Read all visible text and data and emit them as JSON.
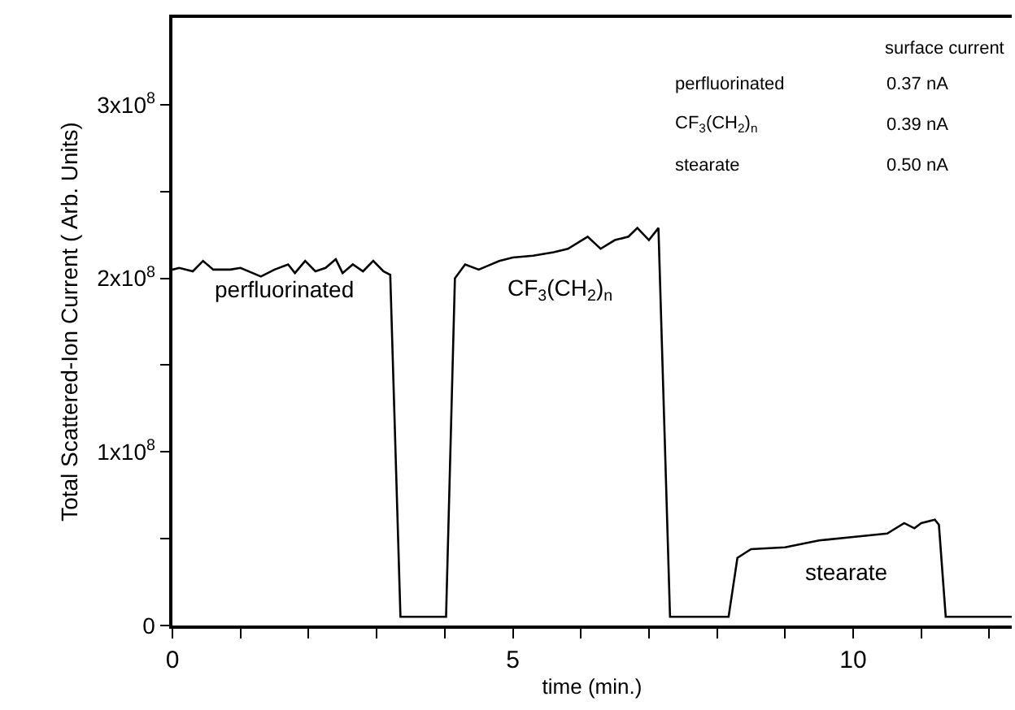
{
  "chart_data": {
    "type": "line",
    "xlabel": "time (min.)",
    "ylabel": "Total Scattered-Ion Current ( Arb. Units)",
    "x": [
      0,
      0.1,
      0.3,
      0.45,
      0.6,
      0.85,
      1.0,
      1.3,
      1.5,
      1.7,
      1.8,
      1.95,
      2.1,
      2.25,
      2.4,
      2.5,
      2.65,
      2.8,
      2.95,
      3.1,
      3.2,
      3.35,
      4.02,
      4.15,
      4.3,
      4.5,
      4.62,
      4.8,
      5.0,
      5.3,
      5.6,
      5.81,
      6.1,
      6.29,
      6.5,
      6.7,
      6.83,
      7.0,
      7.14,
      7.31,
      8.17,
      8.3,
      8.5,
      9.0,
      9.5,
      10.0,
      10.5,
      10.75,
      10.9,
      11.0,
      11.2,
      11.26,
      11.36,
      12.33
    ],
    "series": [
      {
        "color": "#000000",
        "values": [
          205000000.0,
          206000000.0,
          204000000.0,
          210000000.0,
          205000000.0,
          205000000.0,
          206000000.0,
          201000000.0,
          205000000.0,
          208000000.0,
          203000000.0,
          210000000.0,
          204000000.0,
          206000000.0,
          211000000.0,
          203000000.0,
          208000000.0,
          204000000.0,
          210000000.0,
          204000000.0,
          202000000.0,
          5000000.0,
          5000000.0,
          200000000.0,
          208000000.0,
          205000000.0,
          207000000.0,
          210000000.0,
          212000000.0,
          213000000.0,
          215000000.0,
          217000000.0,
          224000000.0,
          217000000.0,
          222000000.0,
          224000000.0,
          229000000.0,
          222000000.0,
          229000000.0,
          5000000.0,
          5000000.0,
          39000000.0,
          44000000.0,
          45000000.0,
          49000000.0,
          51000000.0,
          53000000.0,
          59000000.0,
          56000000.0,
          59000000.0,
          61000000.0,
          58000000.0,
          5000000.0,
          5000000.0
        ]
      }
    ],
    "xlim": [
      0,
      12.33
    ],
    "xticks": [
      0,
      {
        "value": 1,
        "label": null
      },
      {
        "value": 2,
        "label": null
      },
      {
        "value": 3,
        "label": null
      },
      {
        "value": 4,
        "label": null
      },
      5,
      {
        "value": 6,
        "label": null
      },
      {
        "value": 7,
        "label": null
      },
      {
        "value": 8,
        "label": null
      },
      {
        "value": 9,
        "label": null
      },
      10,
      {
        "value": 11,
        "label": null
      },
      {
        "value": 12,
        "label": null
      }
    ],
    "ylim": [
      0,
      350000000.0
    ],
    "yticks": [
      0,
      {
        "value": 50000000.0,
        "label": null
      },
      {
        "value": 100000000.0,
        "label": "1x10$^{8}$"
      },
      {
        "value": 150000000.0,
        "label": null
      },
      {
        "value": 200000000.0,
        "label": "2x10$^{8}$"
      },
      {
        "value": 250000000.0,
        "label": null
      },
      {
        "value": 300000000.0,
        "label": "3x10$^{8}$"
      }
    ],
    "marker": "none",
    "line_style": "solid",
    "annotations": [
      "perfluorinated",
      "CF$_{3}$(CH$_{2}$)$_{n}$",
      "stearate",
      "surface current",
      "perfluorinated",
      "0.37 nA",
      "CF$_{3}$(CH$_{2}$)$_{n}$",
      "0.39 nA",
      "stearate",
      "0.50 nA"
    ]
  }
}
